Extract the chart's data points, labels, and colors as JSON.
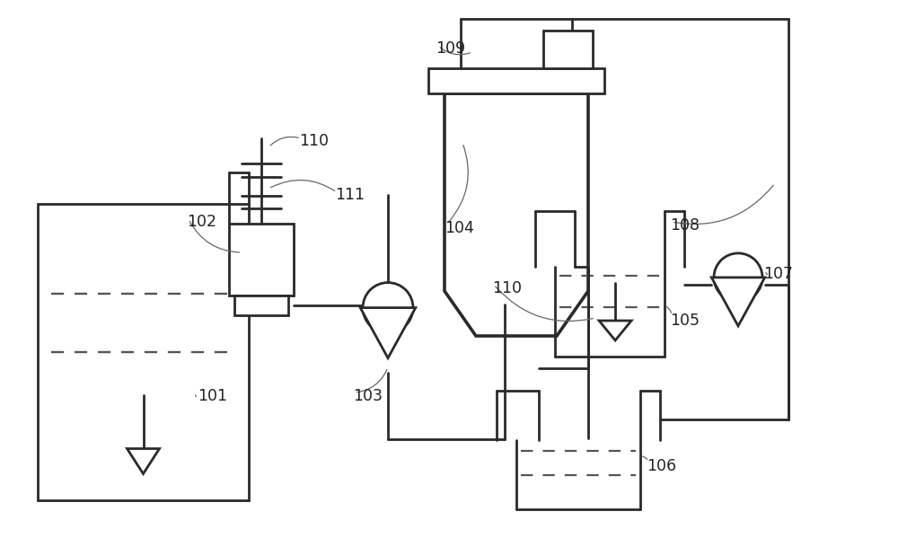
{
  "bg_color": "#ffffff",
  "line_color": "#2a2a2a",
  "line_width": 2.0,
  "dash_color": "#555555",
  "label_color": "#222222",
  "label_fontsize": 12.5
}
